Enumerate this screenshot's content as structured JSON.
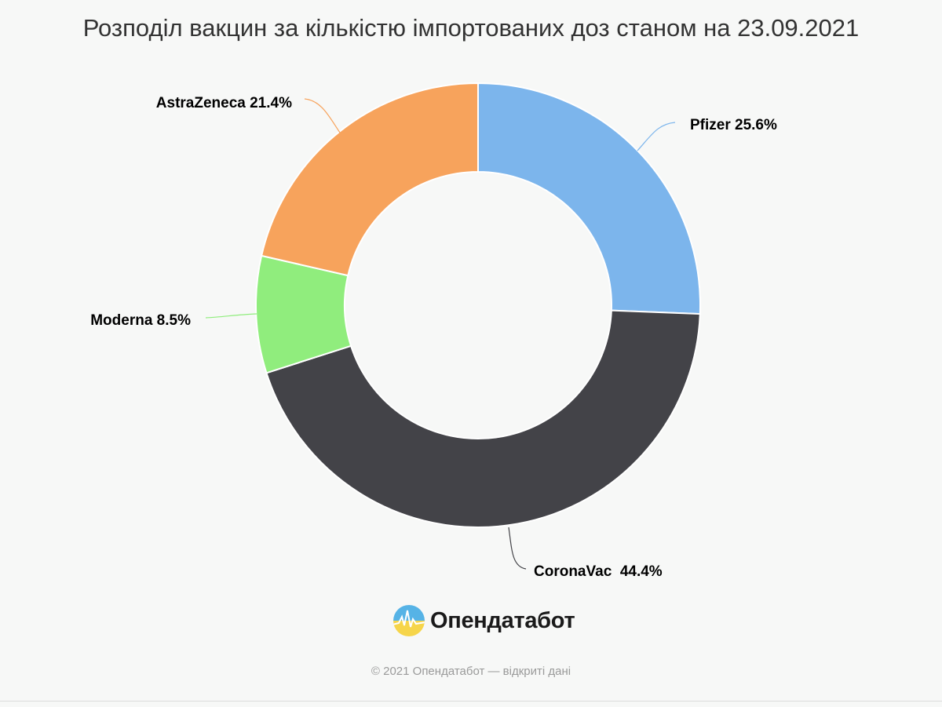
{
  "chart_data": {
    "type": "pie",
    "subtype": "donut",
    "title": "Розподіл вакцин за кількістю імпортованих доз станом на 23.09.2021",
    "slices": [
      {
        "label": "Pfizer",
        "value": 25.6,
        "display": "Pfizer 25.6%",
        "color": "#7cb5ec"
      },
      {
        "label": "CoronaVac",
        "value": 44.4,
        "display": "CoronaVac  44.4%",
        "color": "#434348"
      },
      {
        "label": "Moderna",
        "value": 8.5,
        "display": "Moderna 8.5%",
        "color": "#90ed7d"
      },
      {
        "label": "AstraZeneca",
        "value": 21.4,
        "display": "AstraZeneca 21.4%",
        "color": "#f7a35c"
      }
    ],
    "legend": "none"
  },
  "brand": {
    "name": "Опендатабот",
    "copyright": "© 2021 Опендатабот — відкриті дані"
  }
}
